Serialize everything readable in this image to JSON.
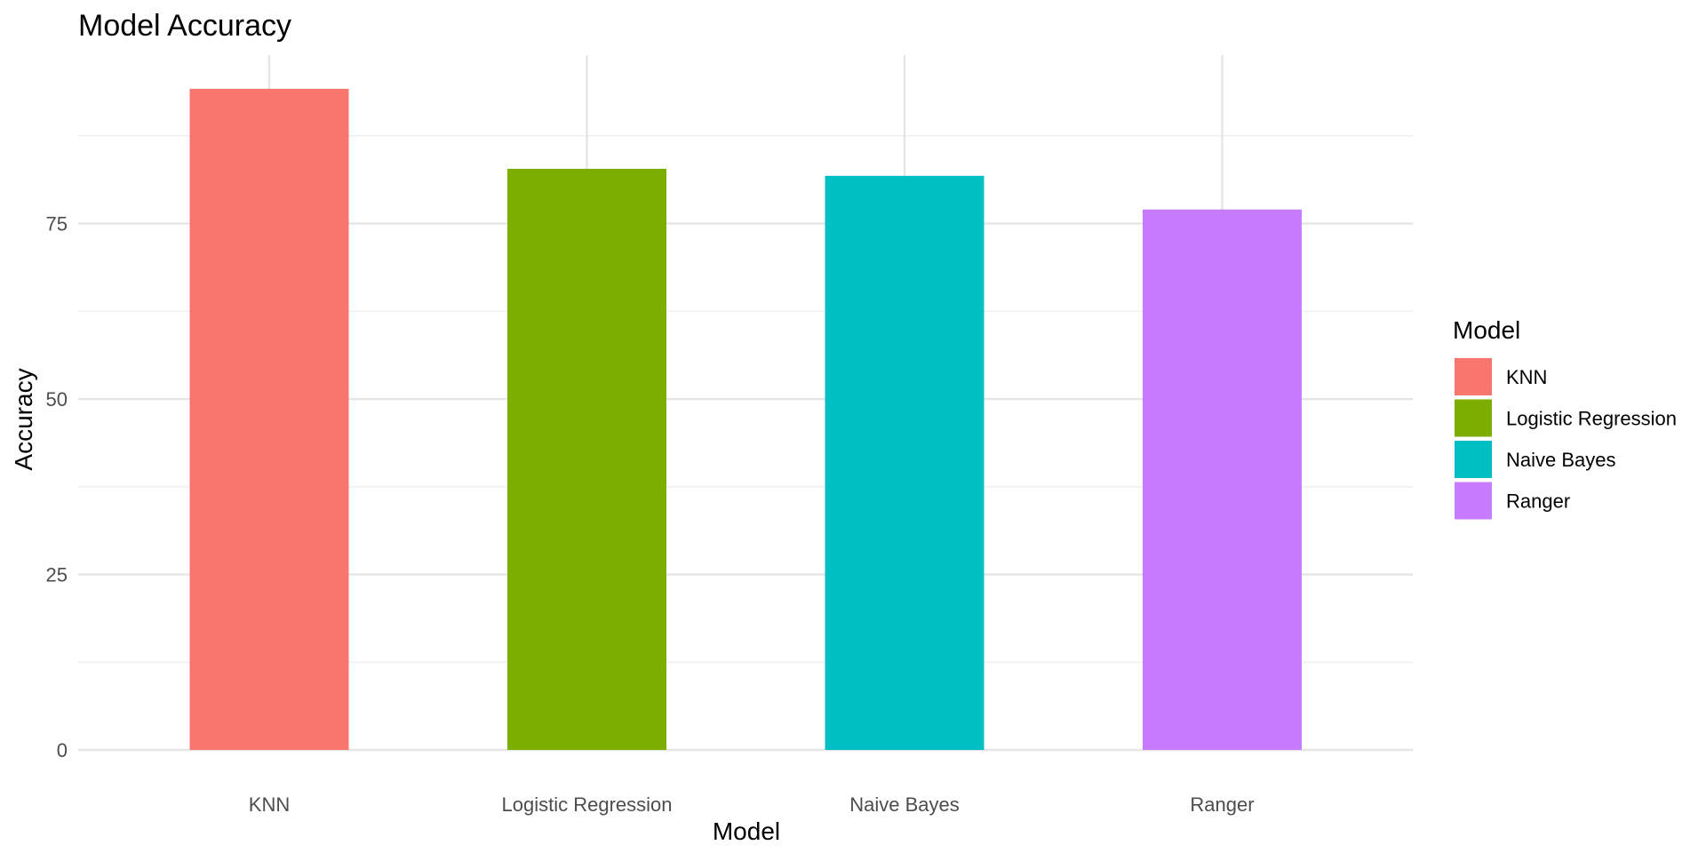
{
  "chart_data": {
    "type": "bar",
    "title": "Model Accuracy",
    "xlabel": "Model",
    "ylabel": "Accuracy",
    "categories": [
      "KNN",
      "Logistic Regression",
      "Naive Bayes",
      "Ranger"
    ],
    "values": [
      94.2,
      82.8,
      81.8,
      77.0
    ],
    "colors": [
      "#F8766D",
      "#7CAE00",
      "#00BFC4",
      "#C77CFF"
    ],
    "ylim": [
      0,
      99
    ],
    "yticks": [
      0,
      25,
      50,
      75
    ],
    "grid": true,
    "legend": {
      "title": "Model",
      "placement": "right",
      "entries": [
        "KNN",
        "Logistic Regression",
        "Naive Bayes",
        "Ranger"
      ]
    }
  }
}
